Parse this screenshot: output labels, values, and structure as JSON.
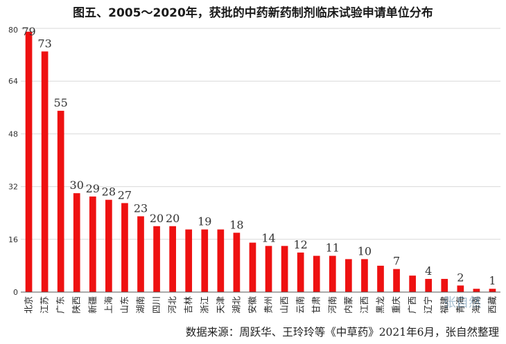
{
  "title": "图五、2005～2020年，获批的中药新药制剂临床试验申请单位分布",
  "source": "数据来源：周跃华、王玲玲等《中草药》2021年6月，张自然整理",
  "watermark": "张自然",
  "colors": {
    "bar": "#ee1111",
    "grid": "#d9d9d9",
    "axis": "#555555",
    "text": "#333333"
  },
  "chart_data": {
    "type": "bar",
    "title": "图五、2005～2020年，获批的中药新药制剂临床试验申请单位分布",
    "xlabel": "",
    "ylabel": "",
    "ylim": [
      0,
      80
    ],
    "yticks": [
      0,
      16,
      32,
      48,
      64,
      80
    ],
    "grid": true,
    "categories": [
      "北京",
      "江苏",
      "广东",
      "陕西",
      "新疆",
      "上海",
      "山东",
      "湖南",
      "四川",
      "河北",
      "吉林",
      "浙江",
      "天津",
      "湖北",
      "安徽",
      "贵州",
      "山西",
      "云南",
      "甘肃",
      "河南",
      "内蒙",
      "江西",
      "黑龙",
      "重庆",
      "广西",
      "辽宁",
      "福建",
      "青海",
      "海南",
      "西藏"
    ],
    "values": [
      79,
      73,
      55,
      30,
      29,
      28,
      27,
      23,
      20,
      20,
      19,
      19,
      19,
      18,
      15,
      14,
      14,
      12,
      11,
      11,
      10,
      10,
      8,
      7,
      5,
      4,
      4,
      2,
      1,
      1
    ],
    "data_labels": [
      {
        "index": 0,
        "text": "79"
      },
      {
        "index": 1,
        "text": "73"
      },
      {
        "index": 2,
        "text": "55"
      },
      {
        "index": 3,
        "text": "30"
      },
      {
        "index": 4,
        "text": "29"
      },
      {
        "index": 5,
        "text": "28"
      },
      {
        "index": 6,
        "text": "27"
      },
      {
        "index": 7,
        "text": "23"
      },
      {
        "index": 8,
        "text": "20"
      },
      {
        "index": 9,
        "text": "20"
      },
      {
        "index": 11,
        "text": "19"
      },
      {
        "index": 13,
        "text": "18"
      },
      {
        "index": 15,
        "text": "14"
      },
      {
        "index": 17,
        "text": "12"
      },
      {
        "index": 19,
        "text": "11"
      },
      {
        "index": 21,
        "text": "10"
      },
      {
        "index": 23,
        "text": "7"
      },
      {
        "index": 25,
        "text": "4"
      },
      {
        "index": 27,
        "text": "2"
      },
      {
        "index": 29,
        "text": "1"
      }
    ]
  }
}
